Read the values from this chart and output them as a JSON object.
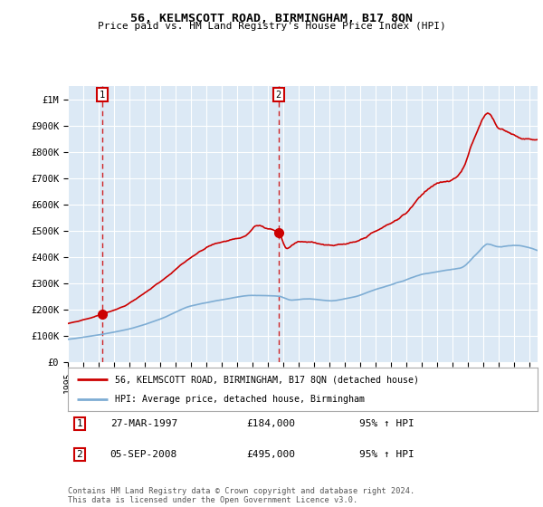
{
  "title": "56, KELMSCOTT ROAD, BIRMINGHAM, B17 8QN",
  "subtitle": "Price paid vs. HM Land Registry's House Price Index (HPI)",
  "hpi_label": "HPI: Average price, detached house, Birmingham",
  "property_label": "56, KELMSCOTT ROAD, BIRMINGHAM, B17 8QN (detached house)",
  "transaction1_date": "27-MAR-1997",
  "transaction1_price": 184000,
  "transaction1_info": "95% ↑ HPI",
  "transaction2_date": "05-SEP-2008",
  "transaction2_price": 495000,
  "transaction2_info": "95% ↑ HPI",
  "transaction1_year": 1997.23,
  "transaction2_year": 2008.68,
  "hpi_color": "#7eadd4",
  "property_color": "#cc0000",
  "marker_color": "#cc0000",
  "vline_color": "#cc0000",
  "plot_bg_color": "#dce9f5",
  "fig_bg_color": "#ffffff",
  "grid_color": "#ffffff",
  "ylim": [
    0,
    1050000
  ],
  "xlim_start": 1995.0,
  "xlim_end": 2025.5,
  "yticks": [
    0,
    100000,
    200000,
    300000,
    400000,
    500000,
    600000,
    700000,
    800000,
    900000,
    1000000
  ],
  "ytick_labels": [
    "£0",
    "£100K",
    "£200K",
    "£300K",
    "£400K",
    "£500K",
    "£600K",
    "£700K",
    "£800K",
    "£900K",
    "£1M"
  ],
  "xtick_years": [
    1995,
    1996,
    1997,
    1998,
    1999,
    2000,
    2001,
    2002,
    2003,
    2004,
    2005,
    2006,
    2007,
    2008,
    2009,
    2010,
    2011,
    2012,
    2013,
    2014,
    2015,
    2016,
    2017,
    2018,
    2019,
    2020,
    2021,
    2022,
    2023,
    2024,
    2025
  ],
  "footnote": "Contains HM Land Registry data © Crown copyright and database right 2024.\nThis data is licensed under the Open Government Licence v3.0."
}
